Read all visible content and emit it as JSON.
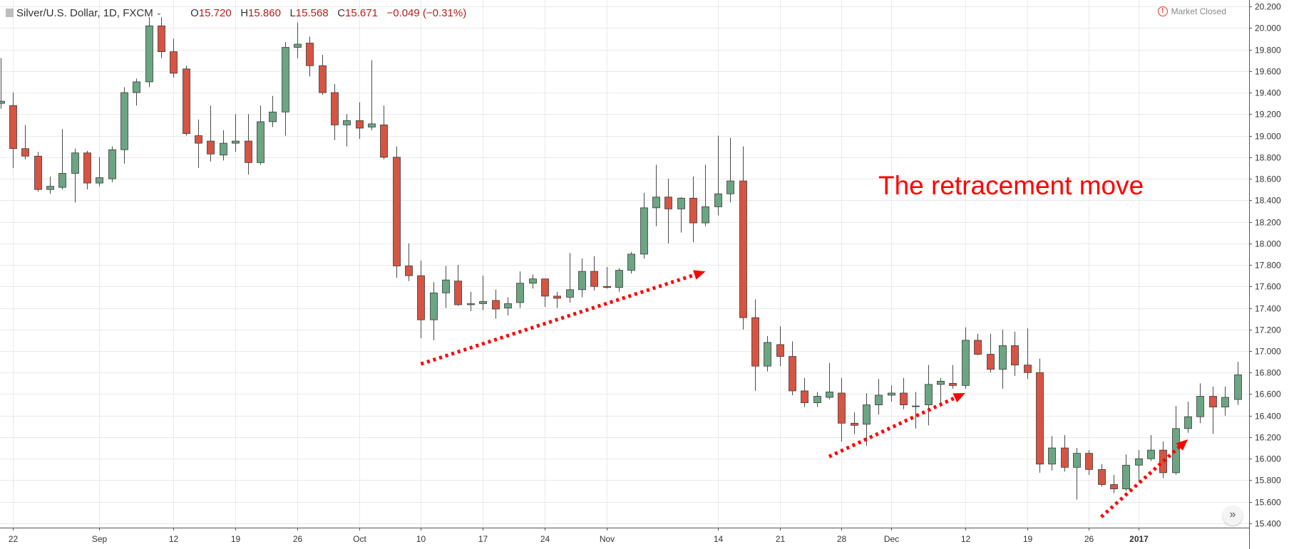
{
  "header": {
    "symbol": "Silver/U.S. Dollar, 1D, FXCM",
    "open_label": "O",
    "open": "15.720",
    "high_label": "H",
    "high": "15.860",
    "low_label": "L",
    "low": "15.568",
    "close_label": "C",
    "close": "15.671",
    "change": "−0.049 (−0.31%)"
  },
  "status": {
    "market": "Market Closed",
    "alert_icon": "exclamation-circle-icon"
  },
  "annotation": {
    "text": "The retracement move",
    "color": "#ff0000"
  },
  "colors": {
    "up": "#6ba583",
    "down": "#d75442",
    "wick": "#4a4a4a",
    "grid": "#e9e9e9",
    "arrow": "#ff0000"
  },
  "chart_data": {
    "type": "candlestick",
    "title": "",
    "ylim": [
      15.36,
      20.26
    ],
    "y_ticks": [
      "15.400",
      "15.600",
      "15.800",
      "16.000",
      "16.200",
      "16.400",
      "16.600",
      "16.800",
      "17.000",
      "17.200",
      "17.400",
      "17.600",
      "17.800",
      "18.000",
      "18.200",
      "18.400",
      "18.600",
      "18.800",
      "19.000",
      "19.200",
      "19.400",
      "19.600",
      "19.800",
      "20.000",
      "20.200"
    ],
    "x_ticks": [
      {
        "label": "22",
        "i": 1
      },
      {
        "label": "Sep",
        "i": 8
      },
      {
        "label": "12",
        "i": 14
      },
      {
        "label": "19",
        "i": 19
      },
      {
        "label": "26",
        "i": 24
      },
      {
        "label": "Oct",
        "i": 29
      },
      {
        "label": "10",
        "i": 34
      },
      {
        "label": "17",
        "i": 39
      },
      {
        "label": "24",
        "i": 44
      },
      {
        "label": "Nov",
        "i": 49
      },
      {
        "label": "14",
        "i": 58
      },
      {
        "label": "21",
        "i": 63
      },
      {
        "label": "28",
        "i": 68
      },
      {
        "label": "Dec",
        "i": 72
      },
      {
        "label": "12",
        "i": 78
      },
      {
        "label": "19",
        "i": 83
      },
      {
        "label": "26",
        "i": 88
      },
      {
        "label": "2017",
        "i": 92
      }
    ],
    "candles": [
      [
        19.3,
        19.72,
        19.25,
        19.32
      ],
      [
        19.28,
        19.4,
        18.7,
        18.88
      ],
      [
        18.88,
        19.1,
        18.78,
        18.81
      ],
      [
        18.81,
        18.85,
        18.48,
        18.5
      ],
      [
        18.5,
        18.62,
        18.46,
        18.53
      ],
      [
        18.52,
        19.06,
        18.5,
        18.65
      ],
      [
        18.65,
        18.88,
        18.38,
        18.84
      ],
      [
        18.84,
        18.86,
        18.5,
        18.56
      ],
      [
        18.56,
        18.8,
        18.53,
        18.61
      ],
      [
        18.6,
        18.9,
        18.57,
        18.87
      ],
      [
        18.87,
        19.45,
        18.74,
        19.4
      ],
      [
        19.4,
        19.53,
        19.28,
        19.5
      ],
      [
        19.5,
        20.1,
        19.45,
        20.02
      ],
      [
        20.02,
        20.1,
        19.72,
        19.78
      ],
      [
        19.78,
        19.9,
        19.54,
        19.58
      ],
      [
        19.62,
        19.65,
        19.0,
        19.02
      ],
      [
        19.0,
        19.15,
        18.7,
        18.93
      ],
      [
        18.95,
        19.28,
        18.76,
        18.83
      ],
      [
        18.82,
        19.05,
        18.77,
        18.93
      ],
      [
        18.93,
        19.2,
        18.85,
        18.95
      ],
      [
        18.95,
        19.2,
        18.64,
        18.75
      ],
      [
        18.75,
        19.28,
        18.73,
        19.13
      ],
      [
        19.13,
        19.37,
        19.08,
        19.22
      ],
      [
        19.22,
        19.87,
        19.0,
        19.82
      ],
      [
        19.82,
        20.05,
        19.72,
        19.85
      ],
      [
        19.86,
        19.92,
        19.55,
        19.65
      ],
      [
        19.65,
        19.75,
        19.38,
        19.4
      ],
      [
        19.4,
        19.48,
        18.96,
        19.1
      ],
      [
        19.1,
        19.2,
        18.9,
        19.14
      ],
      [
        19.14,
        19.31,
        18.97,
        19.07
      ],
      [
        19.08,
        19.7,
        19.05,
        19.11
      ],
      [
        19.1,
        19.28,
        18.78,
        18.8
      ],
      [
        18.8,
        18.9,
        17.68,
        17.79
      ],
      [
        17.79,
        18.0,
        17.65,
        17.7
      ],
      [
        17.7,
        17.84,
        17.12,
        17.29
      ],
      [
        17.29,
        17.64,
        17.1,
        17.54
      ],
      [
        17.54,
        17.79,
        17.4,
        17.66
      ],
      [
        17.65,
        17.8,
        17.42,
        17.43
      ],
      [
        17.43,
        17.55,
        17.37,
        17.44
      ],
      [
        17.44,
        17.7,
        17.38,
        17.46
      ],
      [
        17.47,
        17.57,
        17.3,
        17.39
      ],
      [
        17.4,
        17.5,
        17.33,
        17.44
      ],
      [
        17.45,
        17.74,
        17.4,
        17.63
      ],
      [
        17.63,
        17.71,
        17.58,
        17.67
      ],
      [
        17.67,
        17.67,
        17.41,
        17.51
      ],
      [
        17.51,
        17.55,
        17.4,
        17.49
      ],
      [
        17.5,
        17.91,
        17.45,
        17.57
      ],
      [
        17.57,
        17.86,
        17.5,
        17.74
      ],
      [
        17.74,
        17.88,
        17.56,
        17.6
      ],
      [
        17.6,
        17.78,
        17.58,
        17.59
      ],
      [
        17.59,
        17.77,
        17.55,
        17.75
      ],
      [
        17.75,
        17.92,
        17.72,
        17.9
      ],
      [
        17.9,
        18.47,
        17.86,
        18.33
      ],
      [
        18.33,
        18.73,
        18.16,
        18.43
      ],
      [
        18.43,
        18.6,
        18.0,
        18.32
      ],
      [
        18.32,
        18.43,
        18.1,
        18.42
      ],
      [
        18.42,
        18.62,
        18.01,
        18.19
      ],
      [
        18.19,
        18.73,
        18.16,
        18.34
      ],
      [
        18.34,
        19.0,
        18.26,
        18.46
      ],
      [
        18.46,
        18.98,
        18.38,
        18.58
      ],
      [
        18.58,
        18.9,
        17.2,
        17.31
      ],
      [
        17.31,
        17.48,
        16.63,
        16.86
      ],
      [
        16.86,
        17.14,
        16.81,
        17.08
      ],
      [
        17.06,
        17.23,
        16.86,
        16.95
      ],
      [
        16.95,
        17.09,
        16.59,
        16.63
      ],
      [
        16.63,
        16.75,
        16.48,
        16.52
      ],
      [
        16.52,
        16.62,
        16.48,
        16.58
      ],
      [
        16.57,
        16.89,
        16.55,
        16.62
      ],
      [
        16.61,
        16.75,
        16.16,
        16.33
      ],
      [
        16.33,
        16.43,
        16.23,
        16.31
      ],
      [
        16.32,
        16.61,
        16.12,
        16.5
      ],
      [
        16.5,
        16.74,
        16.41,
        16.59
      ],
      [
        16.59,
        16.68,
        16.53,
        16.61
      ],
      [
        16.61,
        16.75,
        16.46,
        16.5
      ],
      [
        16.49,
        16.62,
        16.28,
        16.49
      ],
      [
        16.5,
        16.87,
        16.31,
        16.69
      ],
      [
        16.69,
        16.75,
        16.48,
        16.72
      ],
      [
        16.7,
        16.87,
        16.65,
        16.68
      ],
      [
        16.68,
        17.22,
        16.65,
        17.1
      ],
      [
        17.1,
        17.16,
        16.96,
        16.97
      ],
      [
        16.97,
        17.16,
        16.8,
        16.83
      ],
      [
        16.83,
        17.2,
        16.65,
        17.05
      ],
      [
        17.05,
        17.18,
        16.77,
        16.87
      ],
      [
        16.87,
        17.21,
        16.74,
        16.8
      ],
      [
        16.8,
        16.93,
        15.87,
        15.95
      ],
      [
        15.95,
        16.21,
        15.89,
        16.1
      ],
      [
        16.1,
        16.22,
        15.88,
        15.92
      ],
      [
        15.92,
        16.1,
        15.62,
        16.05
      ],
      [
        16.05,
        16.08,
        15.85,
        15.9
      ],
      [
        15.9,
        15.95,
        15.74,
        15.76
      ],
      [
        15.76,
        15.85,
        15.68,
        15.72
      ],
      [
        15.72,
        16.04,
        15.7,
        15.94
      ],
      [
        15.94,
        16.08,
        15.78,
        16.0
      ],
      [
        16.0,
        16.22,
        15.98,
        16.08
      ],
      [
        16.08,
        16.16,
        15.82,
        15.87
      ],
      [
        15.87,
        16.49,
        15.85,
        16.28
      ],
      [
        16.28,
        16.53,
        16.24,
        16.39
      ],
      [
        16.39,
        16.7,
        16.33,
        16.58
      ],
      [
        16.58,
        16.67,
        16.23,
        16.48
      ],
      [
        16.48,
        16.67,
        16.4,
        16.57
      ],
      [
        16.55,
        16.9,
        16.5,
        16.78
      ]
    ],
    "annotation_arrows": [
      {
        "from": [
          34,
          16.88
        ],
        "to": [
          57,
          17.74
        ]
      },
      {
        "from": [
          67,
          16.02
        ],
        "to": [
          78,
          16.61
        ]
      },
      {
        "from": [
          89,
          15.46
        ],
        "to": [
          96,
          16.18
        ]
      }
    ]
  }
}
